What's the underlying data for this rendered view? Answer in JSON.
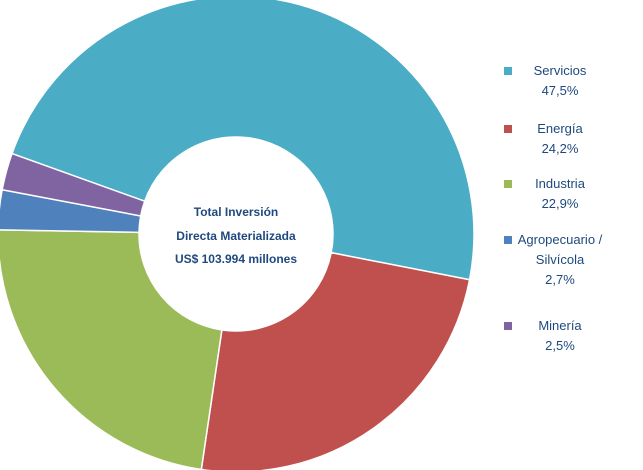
{
  "chart_data": {
    "type": "pie",
    "donut": true,
    "center_text": [
      "Total Inversión",
      "Directa Materializada",
      "US$ 103.994 millones"
    ],
    "categories": [
      "Servicios",
      "Energía",
      "Industria",
      "Agropecuario / Silvícola",
      "Minería"
    ],
    "values": [
      47.5,
      24.2,
      22.9,
      2.7,
      2.5
    ],
    "value_labels": [
      "47,5%",
      "24,2%",
      "22,9%",
      "2,7%",
      "2,5%"
    ],
    "colors": [
      "#4bacc6",
      "#c0504d",
      "#9bbb59",
      "#4f81bd",
      "#8064a2"
    ],
    "legend_position": "right",
    "legend": [
      {
        "label_lines": [
          "Servicios"
        ],
        "value": "47,5%",
        "color": "#4bacc6"
      },
      {
        "label_lines": [
          "Energía"
        ],
        "value": "24,2%",
        "color": "#c0504d"
      },
      {
        "label_lines": [
          "Industria"
        ],
        "value": "22,9%",
        "color": "#9bbb59"
      },
      {
        "label_lines": [
          "Agropecuario /",
          "Silvícola"
        ],
        "value": "2,7%",
        "color": "#4f81bd"
      },
      {
        "label_lines": [
          "Minería"
        ],
        "value": "2,5%",
        "color": "#8064a2"
      }
    ],
    "title": "",
    "xlabel": "",
    "ylabel": ""
  }
}
